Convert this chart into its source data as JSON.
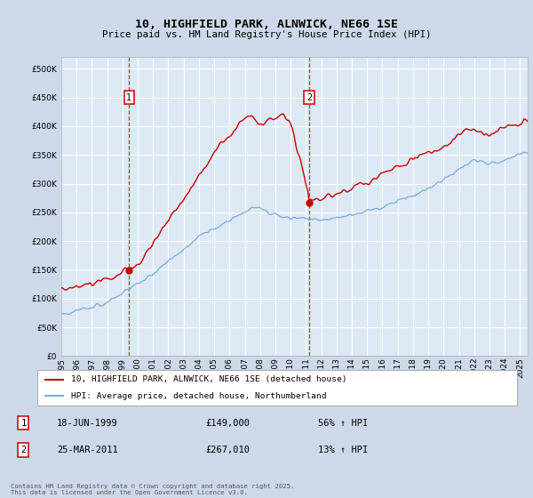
{
  "title": "10, HIGHFIELD PARK, ALNWICK, NE66 1SE",
  "subtitle": "Price paid vs. HM Land Registry's House Price Index (HPI)",
  "background_color": "#cdd9e8",
  "plot_bg_color": "#dce9f5",
  "grid_color": "#ffffff",
  "red_line_color": "#cc0000",
  "blue_line_color": "#7aaadd",
  "ylim": [
    0,
    520000
  ],
  "yticks": [
    0,
    50000,
    100000,
    150000,
    200000,
    250000,
    300000,
    350000,
    400000,
    450000,
    500000
  ],
  "sale1_year": 1999.46,
  "sale1_price": 149000,
  "sale1_date": "18-JUN-1999",
  "sale1_pct": "56% ↑ HPI",
  "sale2_year": 2011.23,
  "sale2_price": 267010,
  "sale2_date": "25-MAR-2011",
  "sale2_pct": "13% ↑ HPI",
  "legend_label1": "10, HIGHFIELD PARK, ALNWICK, NE66 1SE (detached house)",
  "legend_label2": "HPI: Average price, detached house, Northumberland",
  "footer": "Contains HM Land Registry data © Crown copyright and database right 2025.\nThis data is licensed under the Open Government Licence v3.0."
}
